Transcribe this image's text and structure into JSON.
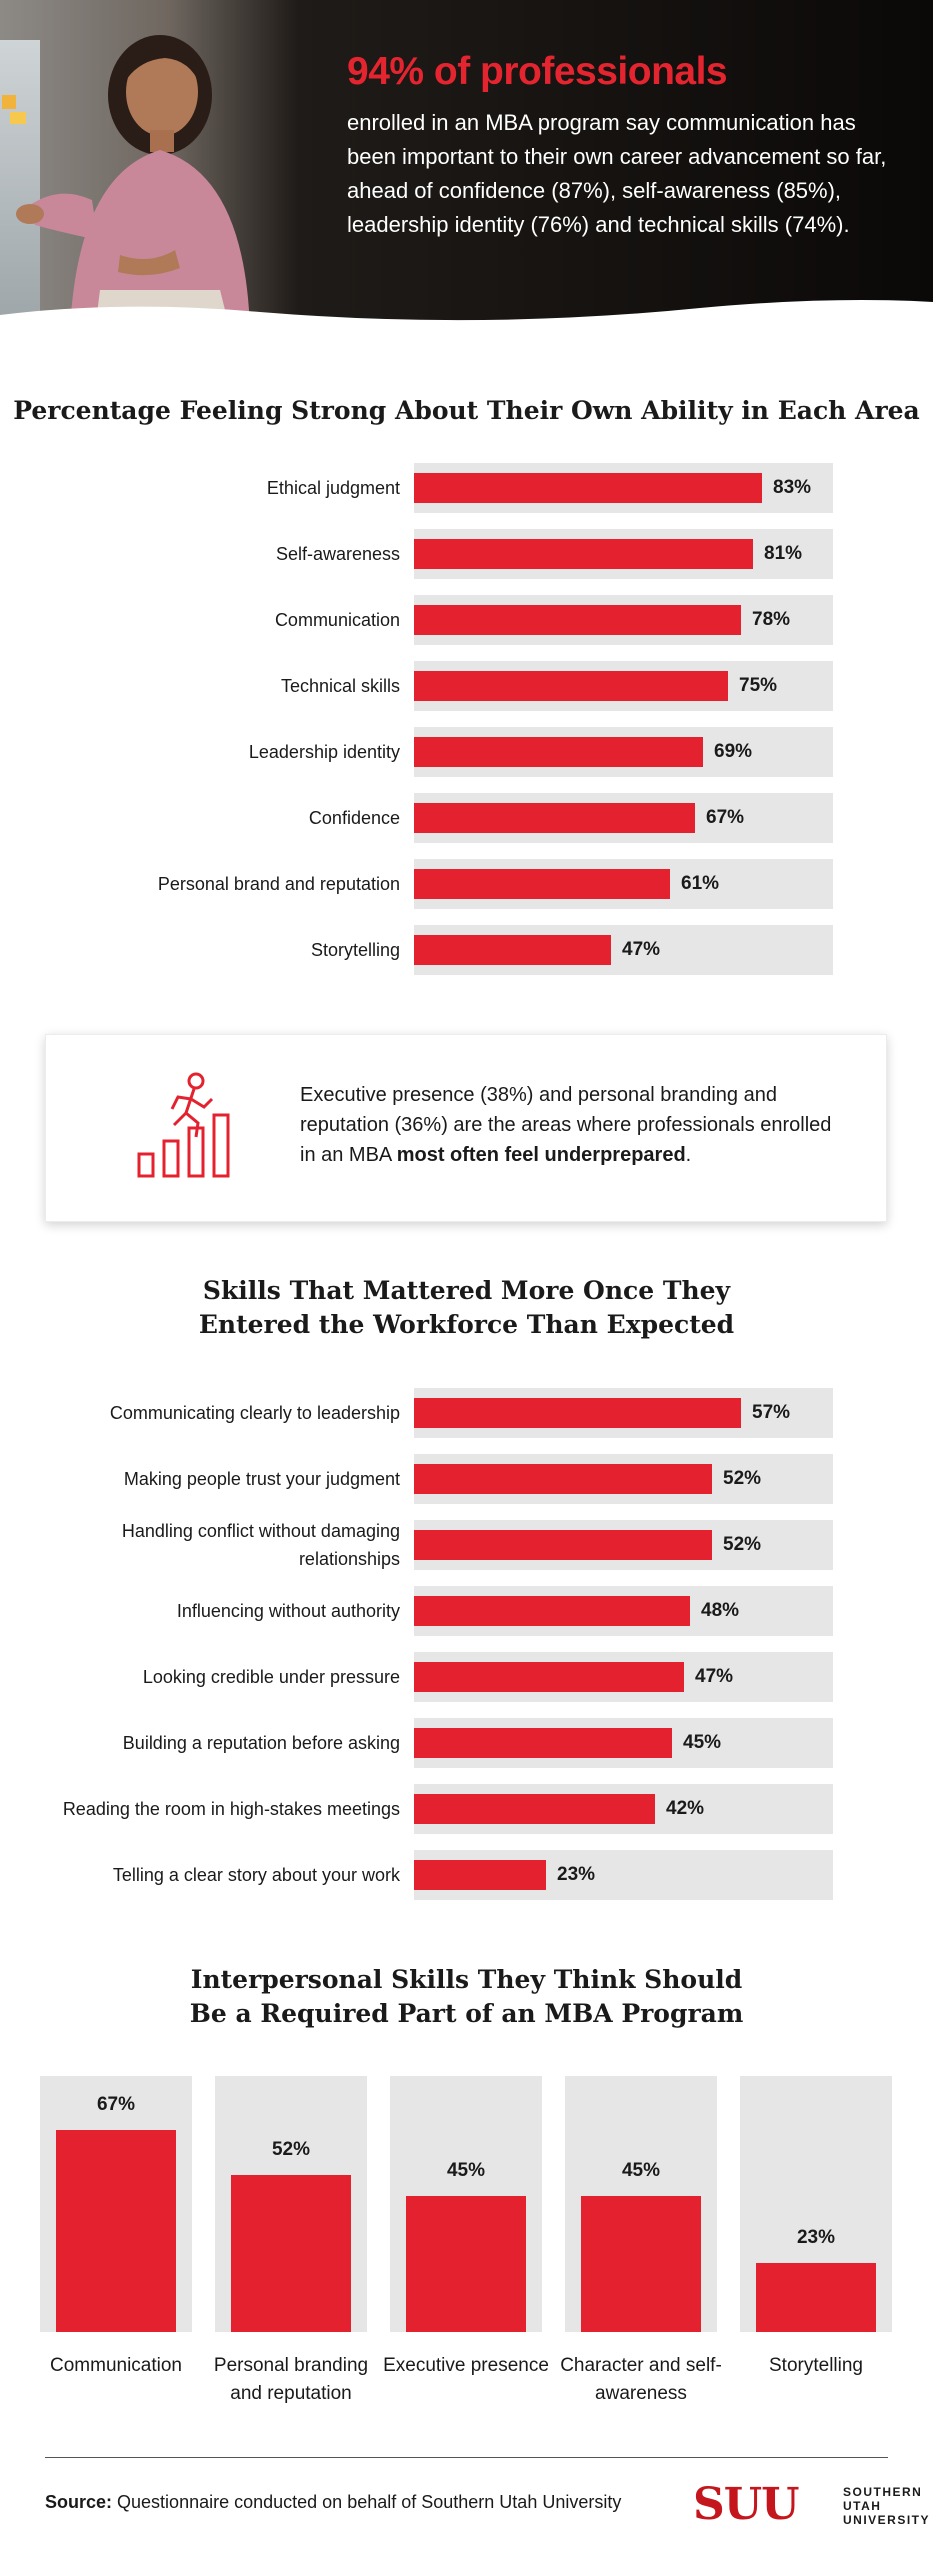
{
  "header": {
    "headline": "94% of professionals",
    "body": "enrolled in an MBA program say communication has been important to their own career advancement so far, ahead of confidence (87%), self-awareness (85%), leadership identity (76%) and technical skills (74%)."
  },
  "colors": {
    "accent": "#e4212e",
    "track": "#e6e6e6",
    "header_bg": "#0f0d0c"
  },
  "callout": {
    "icon": "climbing-stairs-icon",
    "text_before": "Executive presence (38%) and personal branding and reputation (36%) are the areas where professionals enrolled in an MBA ",
    "text_bold": "most often feel underprepared",
    "text_after": "."
  },
  "chart_data": [
    {
      "type": "bar",
      "orientation": "horizontal",
      "title": "Percentage Feeling Strong About Their Own Ability in Each Area",
      "categories": [
        "Ethical judgment",
        "Self-awareness",
        "Communication",
        "Technical skills",
        "Leadership identity",
        "Confidence",
        "Personal brand and reputation",
        "Storytelling"
      ],
      "values": [
        83,
        81,
        78,
        75,
        69,
        67,
        61,
        47
      ],
      "value_labels": [
        "83%",
        "81%",
        "78%",
        "75%",
        "69%",
        "67%",
        "61%",
        "47%"
      ],
      "xlim": [
        0,
        100
      ],
      "grid": false
    },
    {
      "type": "bar",
      "orientation": "horizontal",
      "title": "Skills That Mattered More Once They Entered the Workforce Than Expected",
      "categories": [
        "Communicating clearly to leadership",
        "Making people trust your judgment",
        "Handling conflict without damaging relationships",
        "Influencing without authority",
        "Looking credible under pressure",
        "Building a reputation before asking",
        "Reading the room in high-stakes meetings",
        "Telling a clear story about your work"
      ],
      "values": [
        57,
        52,
        52,
        48,
        47,
        45,
        42,
        23
      ],
      "value_labels": [
        "57%",
        "52%",
        "52%",
        "48%",
        "47%",
        "45%",
        "42%",
        "23%"
      ],
      "xlim": [
        0,
        73
      ],
      "grid": false
    },
    {
      "type": "bar",
      "orientation": "vertical",
      "title": "Interpersonal Skills They Think Should Be a Required Part of an MBA Program",
      "categories": [
        "Communication",
        "Personal branding and reputation",
        "Executive presence",
        "Character and self-awareness",
        "Storytelling"
      ],
      "values": [
        67,
        52,
        45,
        45,
        23
      ],
      "value_labels": [
        "67%",
        "52%",
        "45%",
        "45%",
        "23%"
      ],
      "ylim": [
        0,
        85
      ],
      "grid": false
    }
  ],
  "footer": {
    "source_label": "Source:",
    "source_text": " Questionnaire conducted on behalf of Southern Utah University",
    "logo_mark": "SUU",
    "logo_line1": "SOUTHERN",
    "logo_line2": "UTAH",
    "logo_line3": "UNIVERSITY"
  }
}
